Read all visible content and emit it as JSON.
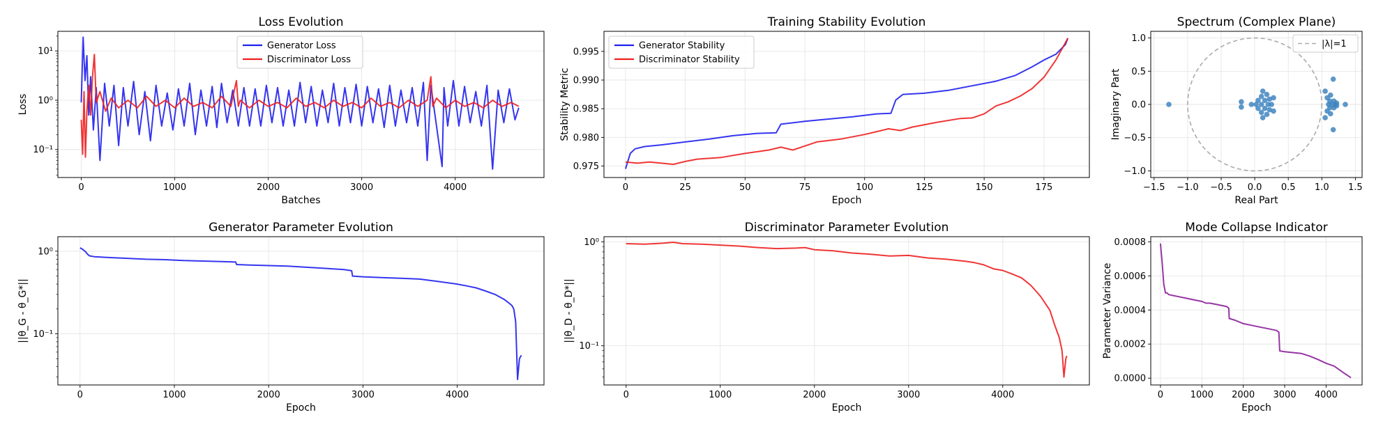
{
  "chart_data": [
    {
      "id": "loss",
      "type": "line",
      "title": "Loss Evolution",
      "xlabel": "Batches",
      "ylabel": "Loss",
      "yscale": "log",
      "xlim": [
        -250,
        4950
      ],
      "ylim": [
        0.027,
        25
      ],
      "xticks": [
        0,
        1000,
        2000,
        3000,
        4000
      ],
      "xtick_labels": [
        "0",
        "1000",
        "2000",
        "3000",
        "4000"
      ],
      "yticks": [
        0.1,
        1,
        10
      ],
      "ytick_labels": [
        "10⁻¹",
        "10⁰",
        "10¹"
      ],
      "legend_position": "top-center",
      "series": [
        {
          "name": "Generator Loss",
          "color": "#1f1fee",
          "x": [
            0,
            20,
            40,
            60,
            80,
            100,
            130,
            160,
            200,
            250,
            300,
            350,
            400,
            450,
            500,
            560,
            620,
            680,
            740,
            800,
            860,
            920,
            980,
            1040,
            1100,
            1160,
            1220,
            1280,
            1340,
            1400,
            1450,
            1500,
            1560,
            1620,
            1680,
            1740,
            1800,
            1860,
            1920,
            1980,
            2040,
            2100,
            2160,
            2220,
            2280,
            2340,
            2400,
            2460,
            2520,
            2580,
            2640,
            2700,
            2760,
            2820,
            2880,
            2940,
            3000,
            3060,
            3120,
            3180,
            3240,
            3300,
            3360,
            3420,
            3480,
            3540,
            3600,
            3660,
            3700,
            3740,
            3800,
            3860,
            3880,
            3920,
            3980,
            4040,
            4100,
            4160,
            4220,
            4280,
            4340,
            4400,
            4460,
            4520,
            4580,
            4640,
            4680
          ],
          "values": [
            0.9,
            19,
            2.5,
            8,
            0.5,
            3,
            0.25,
            1.8,
            0.06,
            2.2,
            0.3,
            2.0,
            0.12,
            1.8,
            0.3,
            2.4,
            0.2,
            1.5,
            0.15,
            2.0,
            0.3,
            1.4,
            0.25,
            1.7,
            0.3,
            2.2,
            0.2,
            1.6,
            0.3,
            1.9,
            0.28,
            2.2,
            0.35,
            1.6,
            0.3,
            1.8,
            0.3,
            1.7,
            0.3,
            2.0,
            0.35,
            1.8,
            0.3,
            1.6,
            0.3,
            2.3,
            0.35,
            1.9,
            0.3,
            1.6,
            0.35,
            2.2,
            0.3,
            1.8,
            0.35,
            2.1,
            0.3,
            1.9,
            0.35,
            1.7,
            0.28,
            2.0,
            0.3,
            1.6,
            0.35,
            1.8,
            0.3,
            2.3,
            0.06,
            2.0,
            0.3,
            0.045,
            1.8,
            0.3,
            2.5,
            0.3,
            1.9,
            0.35,
            1.5,
            0.3,
            2.0,
            0.04,
            1.6,
            0.35,
            1.7,
            0.4,
            0.7
          ]
        },
        {
          "name": "Discriminator Loss",
          "color": "#ee1f1f",
          "x": [
            0,
            15,
            30,
            45,
            60,
            80,
            100,
            120,
            140,
            160,
            200,
            260,
            320,
            400,
            500,
            600,
            700,
            800,
            900,
            1000,
            1100,
            1200,
            1300,
            1400,
            1500,
            1600,
            1660,
            1680,
            1700,
            1800,
            1900,
            2000,
            2100,
            2200,
            2300,
            2400,
            2500,
            2600,
            2700,
            2800,
            2900,
            3000,
            3100,
            3200,
            3300,
            3400,
            3500,
            3600,
            3700,
            3740,
            3760,
            3800,
            3900,
            4000,
            4100,
            4200,
            4300,
            4400,
            4500,
            4600,
            4680
          ],
          "values": [
            0.4,
            0.08,
            1.5,
            0.07,
            0.6,
            2.0,
            0.5,
            3.0,
            8.5,
            0.9,
            1.5,
            0.6,
            1.1,
            0.7,
            1.0,
            0.7,
            1.2,
            0.75,
            1.0,
            0.7,
            1.1,
            0.75,
            0.9,
            0.7,
            1.2,
            0.75,
            2.5,
            0.75,
            1.0,
            0.7,
            1.0,
            0.75,
            0.9,
            0.7,
            1.1,
            0.75,
            0.9,
            0.7,
            1.0,
            0.75,
            0.9,
            0.7,
            1.1,
            0.75,
            0.9,
            0.7,
            1.0,
            0.75,
            1.0,
            3.0,
            0.75,
            1.1,
            0.7,
            1.0,
            0.75,
            0.9,
            0.7,
            1.0,
            0.75,
            0.9,
            0.75
          ]
        }
      ]
    },
    {
      "id": "stability",
      "type": "line",
      "title": "Training Stability Evolution",
      "xlabel": "Epoch",
      "ylabel": "Stability Metric",
      "xlim": [
        -9,
        194
      ],
      "ylim": [
        0.973,
        0.9985
      ],
      "xticks": [
        0,
        25,
        50,
        75,
        100,
        125,
        150,
        175
      ],
      "xtick_labels": [
        "0",
        "25",
        "50",
        "75",
        "100",
        "125",
        "150",
        "175"
      ],
      "yticks": [
        0.975,
        0.98,
        0.985,
        0.99,
        0.995
      ],
      "ytick_labels": [
        "0.975",
        "0.980",
        "0.985",
        "0.990",
        "0.995"
      ],
      "legend_position": "top-left",
      "series": [
        {
          "name": "Generator Stability",
          "color": "#1f1fee",
          "x": [
            0,
            2,
            4,
            8,
            15,
            25,
            35,
            45,
            55,
            63,
            65,
            75,
            85,
            95,
            105,
            111,
            113,
            116,
            125,
            135,
            145,
            155,
            163,
            170,
            175,
            180,
            184,
            185
          ],
          "values": [
            0.9745,
            0.9772,
            0.978,
            0.9784,
            0.9787,
            0.9792,
            0.9797,
            0.9803,
            0.9807,
            0.9808,
            0.9823,
            0.9828,
            0.9832,
            0.9836,
            0.9841,
            0.9842,
            0.9865,
            0.9875,
            0.9877,
            0.9882,
            0.989,
            0.9898,
            0.9908,
            0.9923,
            0.9935,
            0.9945,
            0.9962,
            0.9973
          ]
        },
        {
          "name": "Discriminator Stability",
          "color": "#ee1f1f",
          "x": [
            0,
            5,
            10,
            15,
            20,
            25,
            30,
            40,
            50,
            60,
            65,
            70,
            80,
            90,
            100,
            105,
            110,
            115,
            120,
            130,
            140,
            145,
            150,
            155,
            160,
            165,
            170,
            175,
            180,
            185
          ],
          "values": [
            0.9757,
            0.9755,
            0.9757,
            0.9755,
            0.9753,
            0.9758,
            0.9762,
            0.9765,
            0.9772,
            0.9778,
            0.9783,
            0.9778,
            0.9792,
            0.9797,
            0.9805,
            0.981,
            0.9815,
            0.9812,
            0.9818,
            0.9826,
            0.9833,
            0.9834,
            0.9841,
            0.9855,
            0.9862,
            0.9872,
            0.9885,
            0.9905,
            0.9935,
            0.9973
          ]
        }
      ]
    },
    {
      "id": "spectrum",
      "type": "scatter",
      "title": "Spectrum (Complex Plane)",
      "xlabel": "Real Part",
      "ylabel": "Imaginary Part",
      "xlim": [
        -1.55,
        1.6
      ],
      "ylim": [
        -1.1,
        1.1
      ],
      "xticks": [
        -1.5,
        -1.0,
        -0.5,
        0,
        0.5,
        1.0,
        1.5
      ],
      "xtick_labels": [
        "−1.5",
        "−1.0",
        "−0.5",
        "0.0",
        "0.5",
        "1.0",
        "1.5"
      ],
      "yticks": [
        -1.0,
        -0.5,
        0,
        0.5,
        1.0
      ],
      "ytick_labels": [
        "−1.0",
        "−0.5",
        "0.0",
        "0.5",
        "1.0"
      ],
      "legend_position": "top-right",
      "unit_circle": {
        "name": "|λ|=1",
        "radius": 1,
        "color": "#aaaaaa"
      },
      "points_color": "#3f85bf",
      "points": [
        [
          -1.28,
          0.0
        ],
        [
          -0.2,
          0.04
        ],
        [
          -0.2,
          -0.04
        ],
        [
          -0.05,
          0.0
        ],
        [
          0.02,
          0.0
        ],
        [
          0.05,
          0.06
        ],
        [
          0.05,
          -0.06
        ],
        [
          0.1,
          0.12
        ],
        [
          0.1,
          -0.12
        ],
        [
          0.1,
          0.0
        ],
        [
          0.15,
          0.06
        ],
        [
          0.15,
          -0.06
        ],
        [
          0.12,
          0.2
        ],
        [
          0.12,
          -0.2
        ],
        [
          0.18,
          0.15
        ],
        [
          0.18,
          -0.15
        ],
        [
          0.2,
          0.0
        ],
        [
          0.22,
          0.08
        ],
        [
          0.22,
          -0.08
        ],
        [
          0.25,
          0.0
        ],
        [
          0.28,
          0.1
        ],
        [
          0.28,
          -0.1
        ],
        [
          1.05,
          0.2
        ],
        [
          1.05,
          -0.2
        ],
        [
          1.08,
          0.1
        ],
        [
          1.08,
          -0.1
        ],
        [
          1.1,
          0.0
        ],
        [
          1.12,
          0.05
        ],
        [
          1.12,
          -0.05
        ],
        [
          1.13,
          0.14
        ],
        [
          1.13,
          -0.14
        ],
        [
          1.15,
          0.0
        ],
        [
          1.17,
          0.38
        ],
        [
          1.17,
          -0.38
        ],
        [
          1.18,
          0.05
        ],
        [
          1.18,
          -0.05
        ],
        [
          1.2,
          0.0
        ],
        [
          1.22,
          0.02
        ],
        [
          1.22,
          -0.02
        ],
        [
          1.35,
          0.0
        ]
      ]
    },
    {
      "id": "gen_param",
      "type": "line",
      "title": "Generator Parameter Evolution",
      "xlabel": "Epoch",
      "ylabel": "||θ_G - θ_G*||",
      "yscale": "log",
      "xlim": [
        -235,
        4920
      ],
      "ylim": [
        0.024,
        1.5
      ],
      "xticks": [
        0,
        1000,
        2000,
        3000,
        4000
      ],
      "xtick_labels": [
        "0",
        "1000",
        "2000",
        "3000",
        "4000"
      ],
      "yticks": [
        0.1,
        1
      ],
      "ytick_labels": [
        "10⁻¹",
        "10⁰"
      ],
      "series": [
        {
          "name": "Generator",
          "color": "#1f1fee",
          "x": [
            0,
            30,
            60,
            80,
            100,
            150,
            300,
            500,
            700,
            900,
            1100,
            1300,
            1500,
            1650,
            1660,
            1800,
            2000,
            2200,
            2400,
            2600,
            2800,
            2880,
            2890,
            3000,
            3200,
            3400,
            3600,
            3800,
            4000,
            4100,
            4200,
            4300,
            4400,
            4500,
            4540,
            4580,
            4600,
            4620,
            4640,
            4660,
            4680
          ],
          "values": [
            1.1,
            1.05,
            0.98,
            0.92,
            0.88,
            0.86,
            0.84,
            0.82,
            0.8,
            0.79,
            0.77,
            0.76,
            0.75,
            0.74,
            0.69,
            0.68,
            0.67,
            0.66,
            0.64,
            0.62,
            0.6,
            0.58,
            0.5,
            0.49,
            0.48,
            0.47,
            0.46,
            0.43,
            0.4,
            0.38,
            0.36,
            0.33,
            0.3,
            0.26,
            0.24,
            0.22,
            0.2,
            0.14,
            0.028,
            0.05,
            0.055
          ]
        }
      ]
    },
    {
      "id": "disc_param",
      "type": "line",
      "title": "Discriminator Parameter Evolution",
      "xlabel": "Epoch",
      "ylabel": "||θ_D - θ_D*||",
      "yscale": "log",
      "xlim": [
        -235,
        4920
      ],
      "ylim": [
        0.042,
        1.12
      ],
      "xticks": [
        0,
        1000,
        2000,
        3000,
        4000
      ],
      "xtick_labels": [
        "0",
        "1000",
        "2000",
        "3000",
        "4000"
      ],
      "yticks": [
        0.1,
        1
      ],
      "ytick_labels": [
        "10⁻¹",
        "10⁰"
      ],
      "series": [
        {
          "name": "Discriminator",
          "color": "#ee1f1f",
          "x": [
            0,
            200,
            400,
            500,
            600,
            800,
            1000,
            1200,
            1400,
            1600,
            1800,
            1900,
            2000,
            2200,
            2400,
            2600,
            2800,
            3000,
            3200,
            3400,
            3600,
            3700,
            3800,
            3900,
            4000,
            4100,
            4200,
            4300,
            4400,
            4500,
            4550,
            4600,
            4630,
            4650,
            4670,
            4680
          ],
          "values": [
            0.96,
            0.95,
            0.97,
            0.99,
            0.96,
            0.95,
            0.93,
            0.91,
            0.88,
            0.86,
            0.87,
            0.88,
            0.84,
            0.82,
            0.78,
            0.76,
            0.73,
            0.74,
            0.7,
            0.68,
            0.65,
            0.63,
            0.6,
            0.55,
            0.53,
            0.49,
            0.45,
            0.38,
            0.3,
            0.22,
            0.16,
            0.12,
            0.09,
            0.05,
            0.075,
            0.08
          ]
        }
      ]
    },
    {
      "id": "mode_collapse",
      "type": "line",
      "title": "Mode Collapse Indicator",
      "xlabel": "Epoch",
      "ylabel": "Parameter Variance",
      "xlim": [
        -235,
        4870
      ],
      "ylim": [
        -4e-05,
        0.00083
      ],
      "xticks": [
        0,
        1000,
        2000,
        3000,
        4000
      ],
      "xtick_labels": [
        "0",
        "1000",
        "2000",
        "3000",
        "4000"
      ],
      "yticks": [
        0,
        0.0002,
        0.0004,
        0.0006,
        0.0008
      ],
      "ytick_labels": [
        "0.0000",
        "0.0002",
        "0.0004",
        "0.0006",
        "0.0008"
      ],
      "series": [
        {
          "name": "Variance",
          "color": "#8b1f9a",
          "x": [
            0,
            40,
            80,
            120,
            160,
            200,
            300,
            400,
            600,
            800,
            1000,
            1100,
            1200,
            1400,
            1600,
            1650,
            1660,
            1800,
            2000,
            2200,
            2400,
            2600,
            2800,
            2860,
            2880,
            3000,
            3200,
            3400,
            3600,
            3800,
            4000,
            4200,
            4400,
            4600
          ],
          "values": [
            0.00079,
            0.00068,
            0.00055,
            0.0005,
            0.0005,
            0.00049,
            0.000485,
            0.00048,
            0.00047,
            0.00046,
            0.00045,
            0.00044,
            0.00044,
            0.00043,
            0.00042,
            0.00041,
            0.00035,
            0.00034,
            0.00032,
            0.00031,
            0.0003,
            0.00029,
            0.00028,
            0.00027,
            0.00016,
            0.000155,
            0.00015,
            0.000145,
            0.00013,
            0.00011,
            8.75e-05,
            7e-05,
            3.5e-05,
            2.5e-06
          ]
        }
      ]
    }
  ]
}
